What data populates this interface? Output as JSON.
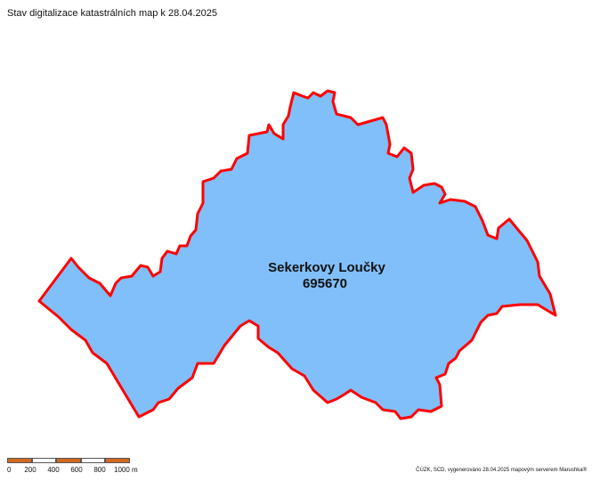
{
  "map": {
    "title": "Stav digitalizace katastrálních map k 28.04.2025",
    "area": {
      "name": "Sekerkovy Loučky",
      "code": "695670",
      "fill_color": "#80bffa",
      "border_color": "#ff0000"
    },
    "scale": {
      "labels": [
        "0",
        "200",
        "400",
        "600",
        "800",
        "1000 m"
      ],
      "colors": [
        "#d2691e",
        "#ffffff",
        "#d2691e",
        "#ffffff",
        "#d2691e"
      ]
    },
    "credit": "ČÚZK, SCD, vygenerováno 28.04.2025 mapovým serverem Marushka®"
  }
}
